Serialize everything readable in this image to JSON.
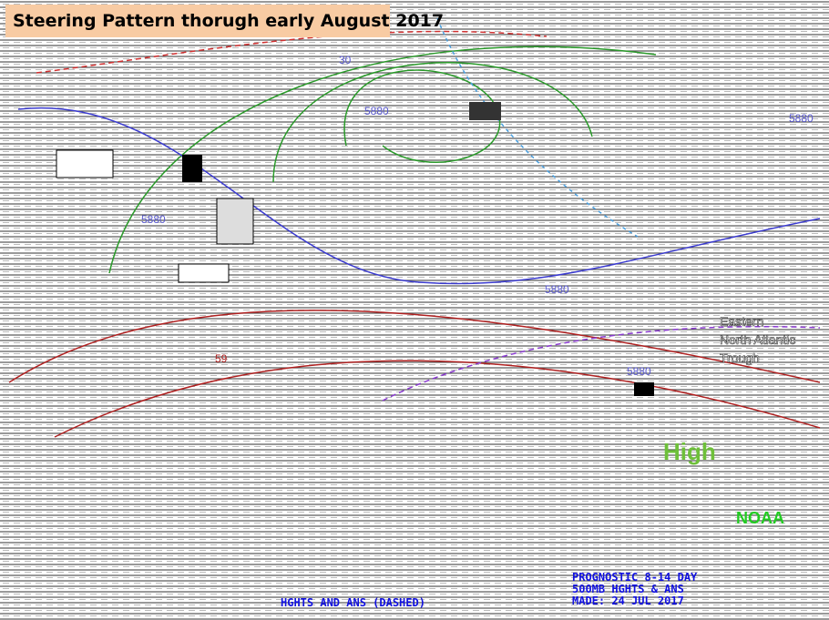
{
  "header": {
    "title": "Steering Pattern thorugh early August 2017"
  },
  "contour_labels": [
    "30",
    "5880",
    "5880",
    "5880",
    "5880",
    "59",
    "5880"
  ],
  "annotations": {
    "high": "High",
    "trough": [
      "Eastern",
      "North Atlantic",
      "Trough"
    ],
    "agency": "NOAA"
  },
  "footer": {
    "lines": [
      "PROGNOSTIC 8-14 DAY",
      "500MB HGHTS & ANS",
      "MADE: 24 JUL 2017"
    ],
    "legend": "HGHTS AND ANS (DASHED)"
  }
}
